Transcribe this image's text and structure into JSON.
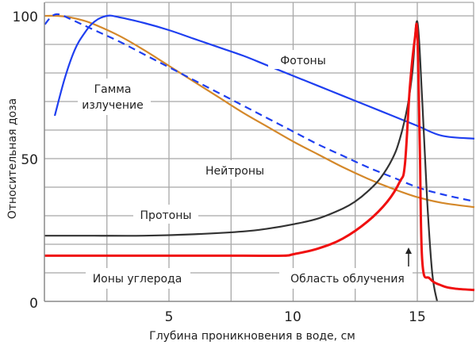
{
  "chart_data": {
    "type": "line",
    "title": "",
    "xlabel": "Глубина проникновения в воде, см",
    "ylabel": "Относительная доза",
    "xlim": [
      0,
      17.3
    ],
    "ylim": [
      0,
      105
    ],
    "x_ticks": [
      {
        "value": 5,
        "label": "5"
      },
      {
        "value": 10,
        "label": "10"
      },
      {
        "value": 15,
        "label": "15"
      }
    ],
    "y_ticks": [
      {
        "value": 0,
        "label": "0"
      },
      {
        "value": 50,
        "label": "50"
      },
      {
        "value": 100,
        "label": "100"
      }
    ],
    "grid": true,
    "grid_x_step": 2.5,
    "grid_y_step": 10,
    "legend": "none (inline annotations)",
    "series": [
      {
        "name": "Фотоны",
        "color": "#1f3ff0",
        "style": "solid",
        "x": [
          0.4,
          0.8,
          1.2,
          1.6,
          2.0,
          2.5,
          3.0,
          4.0,
          5.0,
          6.0,
          7.0,
          8.0,
          9.0,
          10.0,
          11.0,
          12.0,
          13.0,
          14.0,
          15.0,
          16.0,
          17.3
        ],
        "y": [
          65,
          78,
          88,
          94,
          98,
          100,
          99.5,
          97.5,
          95,
          92,
          89,
          86,
          82.5,
          79,
          75.5,
          72,
          68.5,
          65,
          61.5,
          58,
          57
        ]
      },
      {
        "name": "Гамма излучение",
        "color": "#1f3ff0",
        "style": "dashed",
        "x": [
          0,
          0.3,
          0.6,
          1.0,
          2.0,
          3.0,
          4.0,
          5.0,
          6.0,
          7.0,
          8.0,
          9.0,
          10.0,
          11.0,
          12.0,
          13.0,
          14.0,
          15.0,
          16.0,
          17.3
        ],
        "y": [
          97,
          100,
          100.5,
          99,
          95,
          91,
          86.5,
          82,
          77.5,
          73,
          68.5,
          64,
          59.5,
          55,
          51,
          47,
          43.5,
          40,
          37.5,
          35
        ]
      },
      {
        "name": "Нейтроны",
        "color": "#d4882a",
        "style": "solid",
        "x": [
          0,
          0.5,
          1.0,
          1.5,
          2.0,
          3.0,
          4.0,
          5.0,
          6.0,
          7.0,
          8.0,
          9.0,
          10.0,
          11.0,
          12.0,
          13.0,
          14.0,
          15.0,
          16.0,
          17.3
        ],
        "y": [
          100,
          100,
          99.5,
          98.5,
          97,
          93,
          88,
          82.5,
          77,
          71.5,
          66,
          61,
          56,
          51.5,
          47,
          43,
          39.5,
          36.5,
          34.5,
          33
        ]
      },
      {
        "name": "Протоны",
        "color": "#333333",
        "style": "solid",
        "x": [
          0,
          2,
          4,
          6,
          8,
          9,
          10,
          11,
          12,
          12.5,
          13,
          13.5,
          14,
          14.3,
          14.6,
          14.8,
          15.0,
          15.2,
          15.4,
          15.6,
          15.8
        ],
        "y": [
          23,
          23,
          23,
          23.5,
          24.5,
          25.5,
          27,
          29,
          32.5,
          35,
          38.5,
          43,
          50,
          57,
          68,
          80,
          98,
          70,
          35,
          10,
          0
        ]
      },
      {
        "name": "Ионы углерода",
        "color": "#f01010",
        "style": "solid",
        "x": [
          0,
          2,
          4,
          6,
          8,
          9.6,
          10.0,
          11.0,
          12.0,
          13.0,
          13.8,
          14.3,
          14.5,
          14.7,
          14.9,
          15.0,
          15.1,
          15.2,
          15.5,
          16.0,
          16.5,
          17.3
        ],
        "y": [
          16,
          16,
          16,
          16,
          16,
          16,
          16.5,
          18.5,
          22,
          28,
          35,
          42,
          48,
          75,
          92,
          94,
          55,
          14,
          8,
          5.5,
          4.5,
          4
        ]
      }
    ],
    "annotations": [
      {
        "text": "Фотоны",
        "x": 11.2,
        "y": 84
      },
      {
        "text": "Гамма",
        "x": 2.6,
        "y": 74
      },
      {
        "text": "излучение",
        "x": 2.6,
        "y": 68
      },
      {
        "text": "Нейтроны",
        "x": 7.2,
        "y": 46
      },
      {
        "text": "Протоны",
        "x": 3.7,
        "y": 26
      },
      {
        "text": "Ионы углерода",
        "x": 3.0,
        "y": 8
      },
      {
        "text": "Область облучения",
        "x": 12.2,
        "y": 8
      },
      {
        "text": "arrow-up",
        "x": 14.8,
        "y": 12
      }
    ]
  },
  "labels": {
    "y_axis": "Относительная доза",
    "x_axis": "Глубина проникновения в воде, см",
    "tick_x_5": "5",
    "tick_x_10": "10",
    "tick_x_15": "15",
    "tick_y_0": "0",
    "tick_y_50": "50",
    "tick_y_100": "100",
    "photons": "Фотоны",
    "gamma_1": "Гамма",
    "gamma_2": "излучение",
    "neutrons": "Нейтроны",
    "protons": "Протоны",
    "carbon_ions": "Ионы углерода",
    "irradiation_region": "Область облучения"
  },
  "colors": {
    "grid": "#a8a8a8",
    "axis": "#7a7a7a",
    "photons": "#1f3ff0",
    "gamma": "#1f3ff0",
    "neutrons": "#d4882a",
    "protons": "#333333",
    "carbon": "#f01010"
  }
}
